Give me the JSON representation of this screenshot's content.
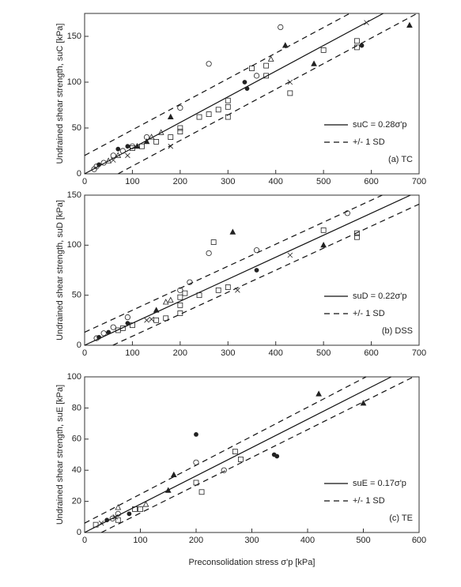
{
  "chart_data": [
    {
      "type": "scatter",
      "panel_label": "(a) TC",
      "ylabel": "Undrained shear strength, suC [kPa]",
      "xlim": [
        0,
        700
      ],
      "ylim": [
        0,
        175
      ],
      "xticks": [
        0,
        100,
        200,
        300,
        400,
        500,
        600,
        700
      ],
      "yticks": [
        0,
        50,
        100,
        150
      ],
      "lines": [
        {
          "name": "suC = 0.28σ'p",
          "dash": false,
          "x": [
            0,
            625
          ],
          "values": [
            0,
            175
          ]
        },
        {
          "name": "+/- 1 SD",
          "dash": true,
          "x": [
            0,
            555
          ],
          "values": [
            20,
            175
          ]
        },
        {
          "dash": true,
          "x": [
            70,
            696
          ],
          "values": [
            0,
            175
          ]
        }
      ],
      "points": [
        {
          "marker": "square",
          "x": [
            570,
            570,
            500,
            430,
            380,
            380,
            350,
            300,
            300,
            300,
            280,
            260,
            240,
            200,
            200,
            180,
            150,
            120,
            100
          ],
          "values": [
            145,
            138,
            135,
            88,
            107,
            118,
            115,
            62,
            73,
            80,
            70,
            65,
            62,
            46,
            50,
            40,
            35,
            30,
            28
          ]
        },
        {
          "marker": "circle",
          "x": [
            410,
            260,
            360,
            200,
            130,
            100,
            80,
            60,
            40,
            25,
            20
          ],
          "values": [
            160,
            120,
            107,
            72,
            40,
            30,
            25,
            20,
            12,
            8,
            5
          ]
        },
        {
          "marker": "triangle-filled",
          "x": [
            680,
            420,
            480,
            180,
            130,
            110
          ],
          "values": [
            162,
            140,
            120,
            62,
            35,
            30
          ]
        },
        {
          "marker": "cross",
          "x": [
            590,
            430,
            180,
            90,
            60
          ],
          "values": [
            165,
            100,
            30,
            20,
            15
          ]
        },
        {
          "marker": "triangle",
          "x": [
            390,
            160,
            140,
            70,
            50
          ],
          "values": [
            125,
            45,
            40,
            20,
            14
          ]
        },
        {
          "marker": "dot",
          "x": [
            340,
            335,
            580,
            90,
            70,
            30
          ],
          "values": [
            93,
            100,
            140,
            30,
            27,
            10
          ]
        }
      ]
    },
    {
      "type": "scatter",
      "panel_label": "(b) DSS",
      "ylabel": "Undrained shear strength, suD [kPa]",
      "xlim": [
        0,
        700
      ],
      "ylim": [
        0,
        150
      ],
      "xticks": [
        0,
        100,
        200,
        300,
        400,
        500,
        600,
        700
      ],
      "yticks": [
        0,
        50,
        100,
        150
      ],
      "lines": [
        {
          "name": "suD = 0.22σ'p",
          "dash": false,
          "x": [
            0,
            682
          ],
          "values": [
            0,
            150
          ]
        },
        {
          "name": "+/- 1 SD",
          "dash": true,
          "x": [
            0,
            623
          ],
          "values": [
            13,
            150
          ]
        },
        {
          "dash": true,
          "x": [
            59,
            700
          ],
          "values": [
            0,
            141
          ]
        }
      ],
      "points": [
        {
          "marker": "square",
          "x": [
            570,
            570,
            500,
            300,
            280,
            270,
            240,
            210,
            200,
            200,
            200,
            170,
            150,
            100,
            80,
            70
          ],
          "values": [
            112,
            108,
            115,
            58,
            55,
            103,
            50,
            52,
            48,
            40,
            32,
            27,
            25,
            20,
            17,
            15
          ]
        },
        {
          "marker": "circle",
          "x": [
            550,
            360,
            260,
            220,
            200,
            90,
            60,
            40,
            25
          ],
          "values": [
            132,
            95,
            92,
            63,
            55,
            28,
            18,
            12,
            7
          ]
        },
        {
          "marker": "triangle-filled",
          "x": [
            310,
            500,
            150
          ],
          "values": [
            113,
            100,
            35
          ]
        },
        {
          "marker": "cross",
          "x": [
            430,
            320,
            130,
            140
          ],
          "values": [
            90,
            55,
            25,
            26
          ]
        },
        {
          "marker": "dot",
          "x": [
            360,
            90,
            50,
            30
          ],
          "values": [
            75,
            22,
            13,
            8
          ]
        },
        {
          "marker": "triangle",
          "x": [
            170,
            180
          ],
          "values": [
            43,
            45
          ]
        }
      ]
    },
    {
      "type": "scatter",
      "panel_label": "(c) TE",
      "ylabel": "Undrained shear strength, suE [kPa]",
      "xlabel": "Preconsolidation stress σ'p [kPa]",
      "xlim": [
        0,
        600
      ],
      "ylim": [
        0,
        100
      ],
      "xticks": [
        0,
        100,
        200,
        300,
        400,
        500,
        600
      ],
      "yticks": [
        0,
        20,
        40,
        60,
        80,
        100
      ],
      "lines": [
        {
          "name": "suE = 0.17σ'p",
          "dash": false,
          "x": [
            0,
            550
          ],
          "values": [
            0,
            100
          ]
        },
        {
          "name": "+/- 1 SD",
          "dash": true,
          "x": [
            0,
            505
          ],
          "values": [
            6,
            100
          ]
        },
        {
          "dash": true,
          "x": [
            30,
            590
          ],
          "values": [
            0,
            100
          ]
        }
      ],
      "points": [
        {
          "marker": "square",
          "x": [
            280,
            270,
            200,
            210,
            100,
            90,
            60,
            20
          ],
          "values": [
            47,
            52,
            32,
            26,
            15,
            15,
            8,
            5
          ]
        },
        {
          "marker": "circle",
          "x": [
            200,
            250,
            60,
            50
          ],
          "values": [
            45,
            40,
            12,
            9
          ]
        },
        {
          "marker": "triangle-filled",
          "x": [
            420,
            500,
            150,
            160
          ],
          "values": [
            89,
            83,
            27,
            37
          ]
        },
        {
          "marker": "dot",
          "x": [
            200,
            340,
            345,
            80,
            40
          ],
          "values": [
            63,
            50,
            49,
            12,
            8
          ]
        },
        {
          "marker": "cross",
          "x": [
            55,
            30
          ],
          "values": [
            10,
            6
          ]
        },
        {
          "marker": "triangle",
          "x": [
            60,
            110
          ],
          "values": [
            16,
            18
          ]
        }
      ]
    }
  ]
}
